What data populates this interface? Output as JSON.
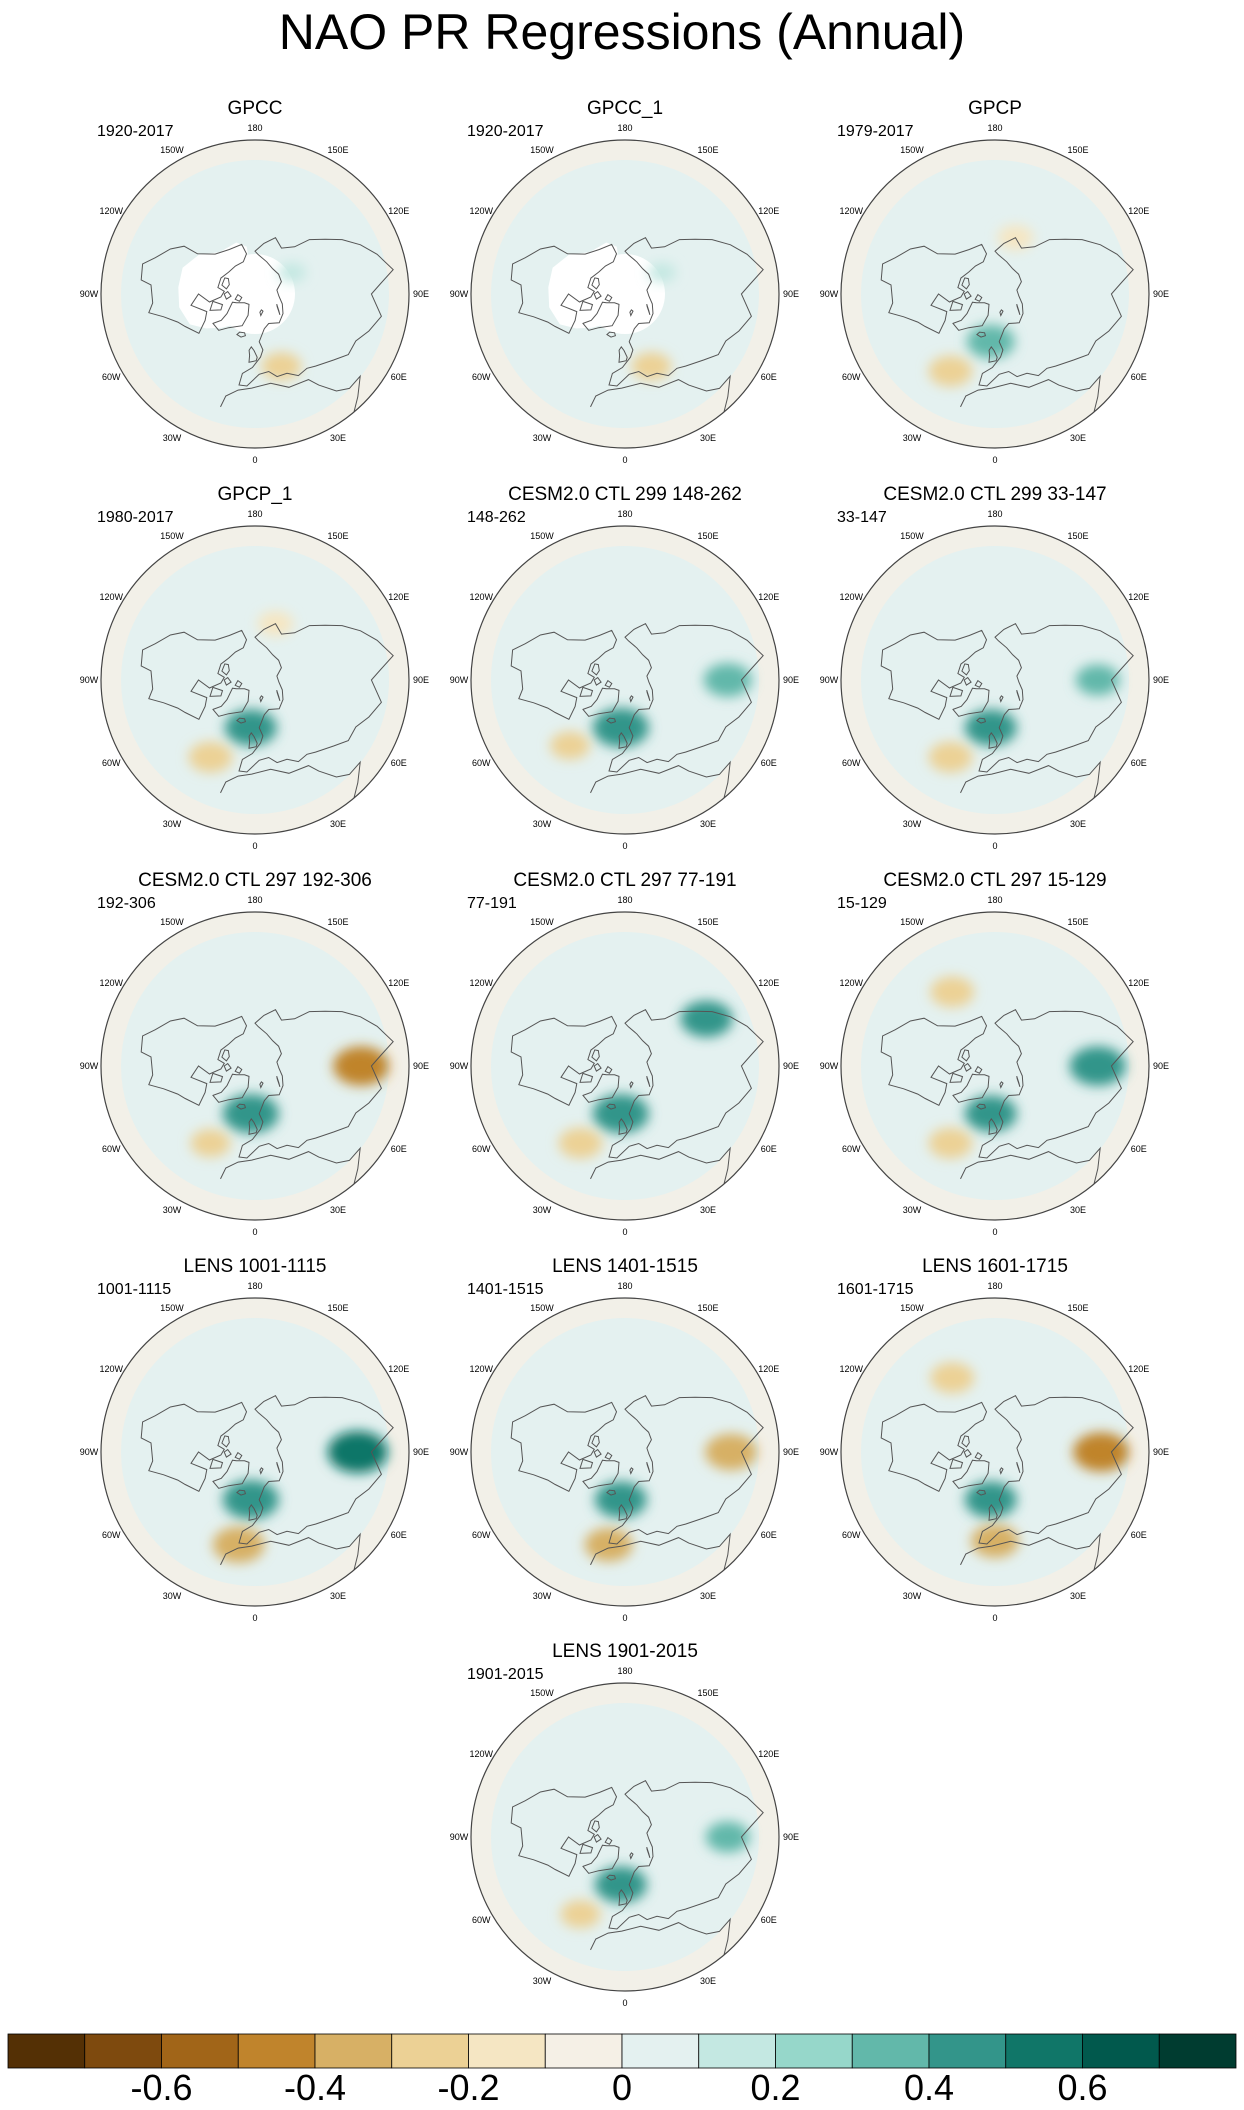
{
  "title": "NAO PR Regressions (Annual)",
  "lon_labels": [
    "180",
    "150E",
    "120E",
    "90E",
    "60E",
    "30E",
    "0",
    "30W",
    "60W",
    "90W",
    "120W",
    "150W"
  ],
  "panels": [
    {
      "title": "GPCC",
      "period": "1920-2017",
      "missing_land_mask": true,
      "features": [
        {
          "lon": 120,
          "lat": 65,
          "value": 0.1
        },
        {
          "lon": 20,
          "lat": 45,
          "value": -0.25
        }
      ]
    },
    {
      "title": "GPCC_1",
      "period": "1920-2017",
      "missing_land_mask": true,
      "features": [
        {
          "lon": 120,
          "lat": 65,
          "value": 0.1
        },
        {
          "lon": 20,
          "lat": 45,
          "value": -0.25
        }
      ]
    },
    {
      "title": "GPCP",
      "period": "1979-2017",
      "missing_land_mask": false,
      "features": [
        {
          "lon": -5,
          "lat": 62,
          "value": 0.35
        },
        {
          "lon": -30,
          "lat": 38,
          "value": -0.3
        },
        {
          "lon": 160,
          "lat": 55,
          "value": -0.2
        }
      ]
    },
    {
      "title": "GPCP_1",
      "period": "1980-2017",
      "missing_land_mask": false,
      "features": [
        {
          "lon": -5,
          "lat": 62,
          "value": 0.4
        },
        {
          "lon": -30,
          "lat": 38,
          "value": -0.3
        },
        {
          "lon": 160,
          "lat": 55,
          "value": -0.2
        }
      ]
    },
    {
      "title": "CESM2.0 CTL 299 148-262",
      "period": "148-262",
      "missing_land_mask": false,
      "features": [
        {
          "lon": -5,
          "lat": 62,
          "value": 0.45
        },
        {
          "lon": 90,
          "lat": 30,
          "value": 0.35
        },
        {
          "lon": -40,
          "lat": 40,
          "value": -0.25
        }
      ]
    },
    {
      "title": "CESM2.0 CTL 299 33-147",
      "period": "33-147",
      "missing_land_mask": false,
      "features": [
        {
          "lon": -5,
          "lat": 62,
          "value": 0.4
        },
        {
          "lon": 90,
          "lat": 30,
          "value": 0.3
        },
        {
          "lon": -30,
          "lat": 38,
          "value": -0.3
        }
      ]
    },
    {
      "title": "CESM2.0 CTL 297 192-306",
      "period": "192-306",
      "missing_land_mask": false,
      "features": [
        {
          "lon": -5,
          "lat": 62,
          "value": 0.45
        },
        {
          "lon": 90,
          "lat": 28,
          "value": -0.45
        },
        {
          "lon": -30,
          "lat": 38,
          "value": -0.25
        }
      ]
    },
    {
      "title": "CESM2.0 CTL 297 77-191",
      "period": "77-191",
      "missing_land_mask": false,
      "features": [
        {
          "lon": -5,
          "lat": 62,
          "value": 0.45
        },
        {
          "lon": 120,
          "lat": 35,
          "value": 0.4
        },
        {
          "lon": -30,
          "lat": 38,
          "value": -0.3
        }
      ]
    },
    {
      "title": "CESM2.0 CTL 297 15-129",
      "period": "15-129",
      "missing_land_mask": false,
      "features": [
        {
          "lon": -5,
          "lat": 62,
          "value": 0.4
        },
        {
          "lon": 90,
          "lat": 30,
          "value": 0.45
        },
        {
          "lon": -150,
          "lat": 40,
          "value": -0.3
        },
        {
          "lon": -30,
          "lat": 38,
          "value": -0.3
        }
      ]
    },
    {
      "title": "LENS 1001-1115",
      "period": "1001-1115",
      "missing_land_mask": false,
      "features": [
        {
          "lon": -5,
          "lat": 62,
          "value": 0.45
        },
        {
          "lon": 90,
          "lat": 30,
          "value": 0.5
        },
        {
          "lon": -10,
          "lat": 35,
          "value": -0.4
        }
      ]
    },
    {
      "title": "LENS 1401-1515",
      "period": "1401-1515",
      "missing_land_mask": false,
      "features": [
        {
          "lon": -5,
          "lat": 62,
          "value": 0.4
        },
        {
          "lon": 90,
          "lat": 28,
          "value": -0.4
        },
        {
          "lon": -10,
          "lat": 35,
          "value": -0.35
        }
      ]
    },
    {
      "title": "LENS 1601-1715",
      "period": "1601-1715",
      "missing_land_mask": false,
      "features": [
        {
          "lon": -5,
          "lat": 62,
          "value": 0.4
        },
        {
          "lon": 90,
          "lat": 28,
          "value": -0.45
        },
        {
          "lon": -150,
          "lat": 40,
          "value": -0.3
        },
        {
          "lon": 0,
          "lat": 38,
          "value": -0.35
        }
      ]
    },
    {
      "title": "LENS 1901-2015",
      "period": "1901-2015",
      "missing_land_mask": false,
      "features": [
        {
          "lon": -5,
          "lat": 62,
          "value": 0.4
        },
        {
          "lon": 90,
          "lat": 30,
          "value": 0.3
        },
        {
          "lon": -30,
          "lat": 38,
          "value": -0.25
        }
      ]
    }
  ],
  "colorbar": {
    "labels": [
      "-0.6",
      "-0.4",
      "-0.2",
      "0",
      "0.2",
      "0.4",
      "0.6"
    ],
    "label_values": [
      -0.6,
      -0.4,
      -0.2,
      0,
      0.2,
      0.4,
      0.6
    ],
    "range": [
      -0.8,
      0.8
    ],
    "colors": [
      "#543005",
      "#7e4a0e",
      "#a16518",
      "#c0842c",
      "#d7b065",
      "#ecd195",
      "#f5e6c3",
      "#f5f0e6",
      "#e4f1f0",
      "#c4e8e2",
      "#96d7ca",
      "#62b8aa",
      "#33958a",
      "#107668",
      "#01594d",
      "#003c30"
    ]
  }
}
